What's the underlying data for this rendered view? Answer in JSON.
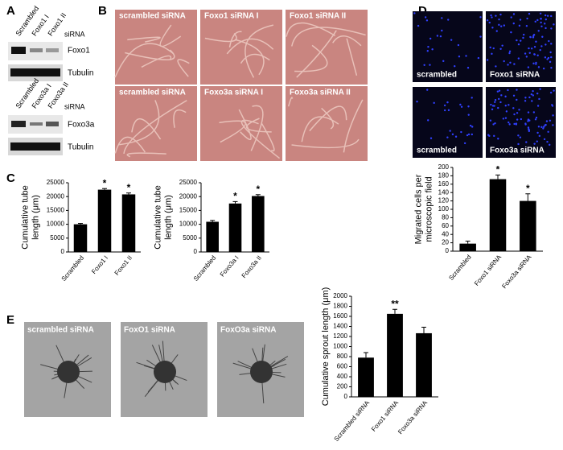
{
  "panel_letters": [
    "A",
    "B",
    "C",
    "D",
    "E"
  ],
  "panel_a": {
    "blot1": {
      "lanes": [
        "Scrambled",
        "Foxo1 I",
        "Foxo1 II"
      ],
      "sirna": "siRNA",
      "rows": [
        "Foxo1",
        "Tubulin"
      ]
    },
    "blot2": {
      "lanes": [
        "Scrambled",
        "Foxo3a I",
        "Foxo3a II"
      ],
      "sirna": "siRNA",
      "rows": [
        "Foxo3a",
        "Tubulin"
      ]
    }
  },
  "panel_b": {
    "image_labels": [
      "scrambled  siRNA",
      "Foxo1  siRNA  I",
      "Foxo1  siRNA  II",
      "scrambled  siRNA",
      "Foxo3a  siRNA  I",
      "Foxo3a  siRNA  II"
    ]
  },
  "panel_d": {
    "image_labels": [
      "scrambled",
      "Foxo1 siRNA",
      "scrambled",
      "Foxo3a siRNA"
    ]
  },
  "panel_e": {
    "image_labels": [
      "scrambled  siRNA",
      "FoxO1  siRNA",
      "FoxO3a  siRNA"
    ]
  },
  "chart_data": [
    {
      "type": "bar",
      "y_label": [
        "Cumulative tube",
        "length (μm)"
      ],
      "categories": [
        "Scrambled",
        "Foxo1 I",
        "Foxo1 II"
      ],
      "values": [
        10000,
        22500,
        20800
      ],
      "errors": [
        300,
        400,
        500
      ],
      "markers": [
        null,
        "*",
        "*"
      ],
      "color": "#000000",
      "ylim": [
        0,
        25000
      ],
      "yticks": [
        0,
        5000,
        10000,
        15000,
        20000,
        25000
      ]
    },
    {
      "type": "bar",
      "y_label": [
        "Cumulative tube",
        "length (μm)"
      ],
      "categories": [
        "Scrambled",
        "Foxo3a I",
        "Foxo3a II"
      ],
      "values": [
        10900,
        17500,
        20200
      ],
      "errors": [
        500,
        700,
        500
      ],
      "markers": [
        null,
        "*",
        "*"
      ],
      "color": "#000000",
      "ylim": [
        0,
        25000
      ],
      "yticks": [
        0,
        5000,
        10000,
        15000,
        20000,
        25000
      ]
    },
    {
      "type": "bar",
      "y_label": [
        "Migrated cells per",
        "microscopic field"
      ],
      "categories": [
        "Scrambled",
        "Foxo1 siRNA",
        "Foxo3a siRNA"
      ],
      "values": [
        18,
        172,
        120
      ],
      "errors": [
        6,
        10,
        17
      ],
      "markers": [
        null,
        "*",
        "*"
      ],
      "color": "#000000",
      "ylim": [
        0,
        200
      ],
      "yticks": [
        0,
        20,
        40,
        60,
        80,
        100,
        120,
        140,
        160,
        180,
        200
      ]
    },
    {
      "type": "bar",
      "y_label": [
        "Cumulative sprout length (μm)"
      ],
      "categories": [
        "Scrambled siRNA",
        "Foxo1 siRNA",
        "Foxo3a siRNA"
      ],
      "values": [
        780,
        1650,
        1265
      ],
      "errors": [
        100,
        90,
        120
      ],
      "markers": [
        null,
        "**",
        null
      ],
      "color": "#000000",
      "ylim": [
        0,
        2000
      ],
      "yticks": [
        0,
        200,
        400,
        600,
        800,
        1000,
        1200,
        1400,
        1600,
        1800,
        2000
      ]
    }
  ]
}
